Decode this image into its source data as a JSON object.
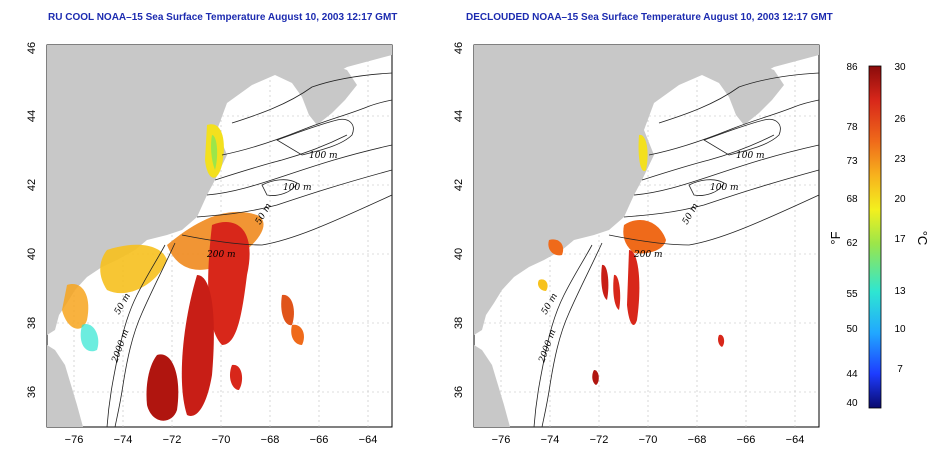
{
  "titles": {
    "left": "RU COOL NOAA–15 Sea Surface Temperature August 10, 2003 12:17 GMT",
    "right": "DECLOUDED NOAA–15 Sea Surface Temperature August 10, 2003 12:17 GMT"
  },
  "axes": {
    "x_ticks": [
      "−76",
      "−74",
      "−72",
      "−70",
      "−68",
      "−66",
      "−64"
    ],
    "y_ticks": [
      "46",
      "44",
      "42",
      "40",
      "38",
      "36"
    ]
  },
  "contour_labels": {
    "left": [
      "100 m",
      "100 m",
      "50 m",
      "200 m",
      "50 m",
      "2000 m"
    ],
    "right": [
      "100 m",
      "100 m",
      "50 m",
      "200 m",
      "50 m",
      "2000 m"
    ]
  },
  "colorbar": {
    "fahrenheit_ticks": [
      "86",
      "78",
      "73",
      "68",
      "62",
      "55",
      "50",
      "44",
      "40"
    ],
    "celsius_ticks": [
      "30",
      "26",
      "23",
      "20",
      "17",
      "13",
      "10",
      "7"
    ],
    "fahrenheit_unit": "°F",
    "celsius_unit": "°C",
    "colors": [
      "#0a0a6e",
      "#1d3cff",
      "#21a8ff",
      "#2ee6d2",
      "#9be64a",
      "#f3f01e",
      "#f7b21d",
      "#ef6a1a",
      "#d8271a",
      "#8a0b0b"
    ]
  },
  "colors": {
    "land": "#c8c8c8",
    "title": "#1c2bb0"
  }
}
